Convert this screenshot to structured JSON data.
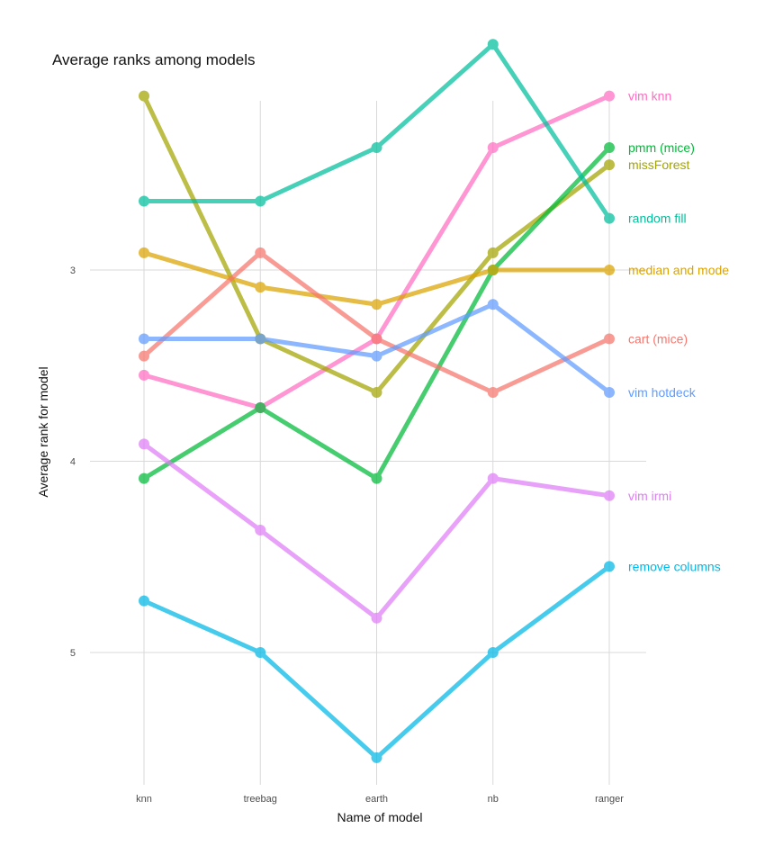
{
  "chart_data": {
    "type": "line",
    "title": "Average ranks among models",
    "xlabel": "Name of model",
    "ylabel": "Average rank for model",
    "y_reversed": true,
    "ylim": [
      5.6,
      2.1
    ],
    "y_ticks": [
      "3",
      "4",
      "5"
    ],
    "grid": true,
    "legend": "direct labels at right end of lines",
    "categories": [
      "knn",
      "treebag",
      "earth",
      "nb",
      "ranger"
    ],
    "series": [
      {
        "name": "vim knn",
        "color": "#ff6dc1",
        "values": [
          3.55,
          3.72,
          3.36,
          2.36,
          2.09
        ]
      },
      {
        "name": "missForest",
        "color": "#a3a500",
        "values": [
          2.09,
          3.36,
          3.64,
          2.91,
          2.45
        ]
      },
      {
        "name": "pmm (mice)",
        "color": "#00ba38",
        "values": [
          4.09,
          3.72,
          4.09,
          3.0,
          2.36
        ]
      },
      {
        "name": "random fill",
        "color": "#00bf9c",
        "values": [
          2.64,
          2.64,
          2.36,
          1.82,
          2.73
        ]
      },
      {
        "name": "median and mode",
        "color": "#dba300",
        "values": [
          2.91,
          3.09,
          3.18,
          3.0,
          3.0
        ]
      },
      {
        "name": "cart (mice)",
        "color": "#f8766d",
        "values": [
          3.45,
          2.91,
          3.36,
          3.64,
          3.36
        ]
      },
      {
        "name": "vim hotdeck",
        "color": "#619cff",
        "values": [
          3.36,
          3.36,
          3.45,
          3.18,
          3.64
        ]
      },
      {
        "name": "vim irmi",
        "color": "#e07df7",
        "values": [
          3.91,
          4.36,
          4.82,
          4.09,
          4.18
        ]
      },
      {
        "name": "remove columns",
        "color": "#00b8e7",
        "values": [
          4.73,
          5.0,
          5.55,
          5.0,
          4.55
        ]
      }
    ]
  }
}
